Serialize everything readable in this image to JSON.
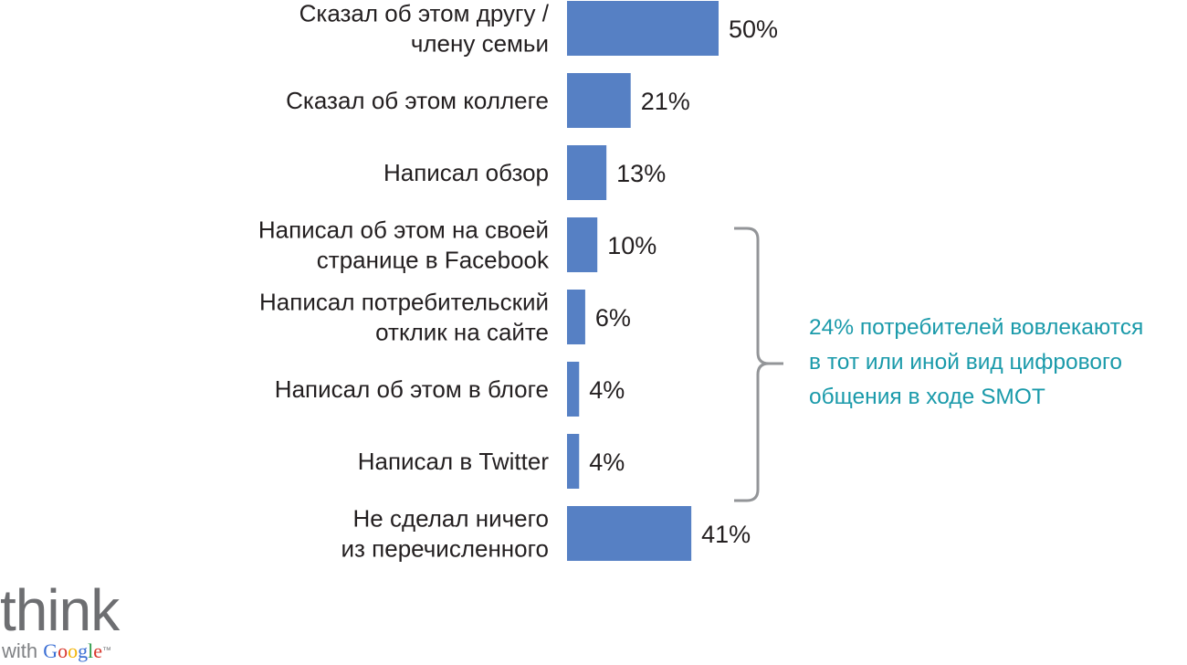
{
  "chart_data": {
    "type": "bar",
    "orientation": "horizontal",
    "categories": [
      [
        "Сказал об этом другу /",
        "члену семьи"
      ],
      [
        "Сказал об этом коллеге"
      ],
      [
        "Написал обзор"
      ],
      [
        "Написал об этом на своей",
        "странице в Facebook"
      ],
      [
        "Написал потребительский",
        "отклик на сайте"
      ],
      [
        "Написал об этом в блоге"
      ],
      [
        "Написал в Twitter"
      ],
      [
        "Не сделал ничего",
        "из перечисленного"
      ]
    ],
    "values": [
      50,
      21,
      13,
      10,
      6,
      4,
      4,
      41
    ],
    "value_labels": [
      "50%",
      "21%",
      "13%",
      "10%",
      "6%",
      "4%",
      "4%",
      "41%"
    ],
    "xlim": [
      0,
      100
    ],
    "bar_color": "#5680c4",
    "grid": false,
    "legend": "none",
    "annotation": {
      "brace_covers": [
        3,
        6
      ],
      "lines": [
        "24% потребителей вовлекаются",
        "в тот или иной вид цифрового",
        "общения в ходе SMOT"
      ],
      "color": "#1a9aaa"
    }
  },
  "logo": {
    "think": "think",
    "with": "with",
    "google_letters": [
      "G",
      "o",
      "o",
      "g",
      "l",
      "e"
    ],
    "mark": "™"
  }
}
